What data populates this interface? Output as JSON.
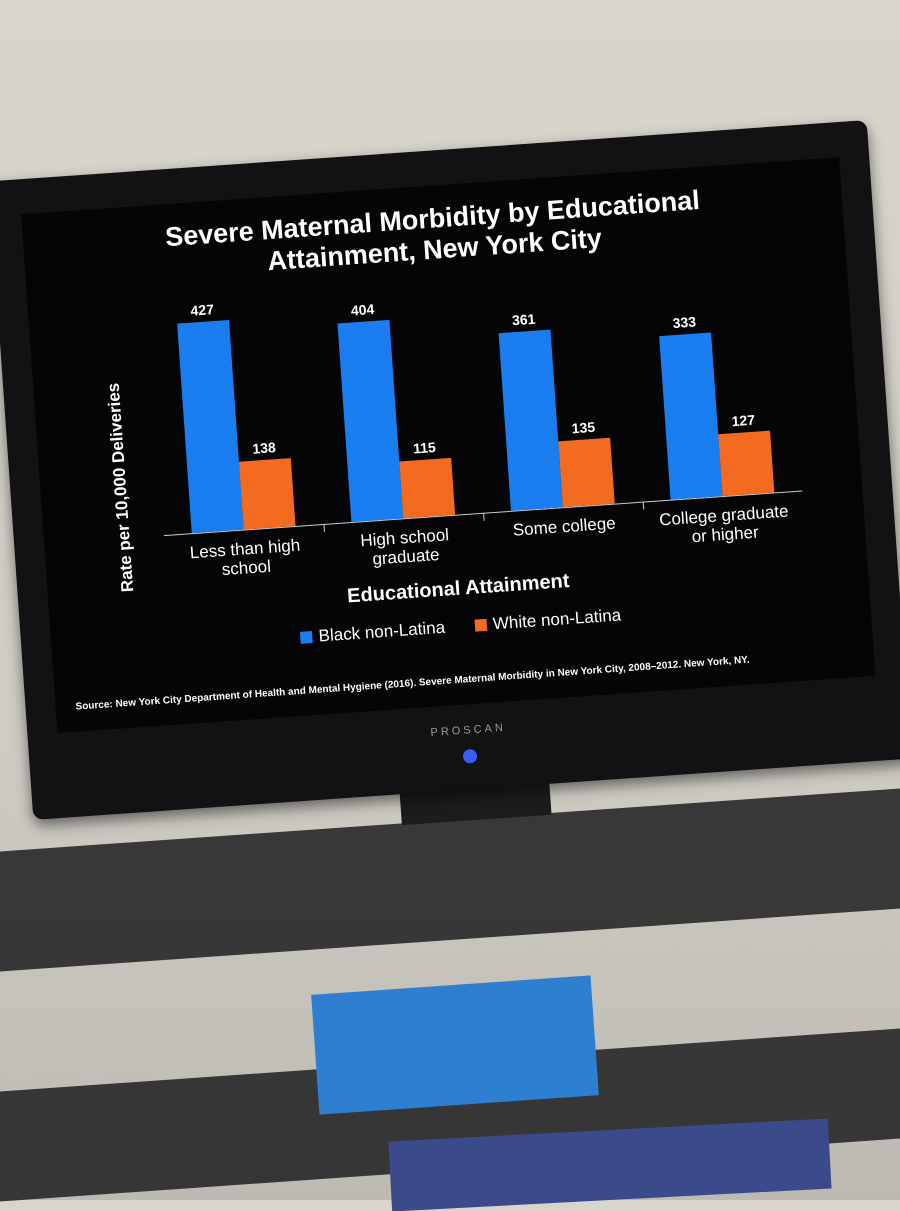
{
  "chart_data": {
    "type": "bar",
    "title": "Severe Maternal Morbidity by Educational Attainment, New York City",
    "x_label": "Educational Attainment",
    "y_label": "Rate per 10,000 Deliveries",
    "categories": [
      "Less than high school",
      "High school graduate",
      "Some college",
      "College graduate or higher"
    ],
    "series": [
      {
        "name": "Black non-Latina",
        "color": "#1a7ef0",
        "values": [
          427,
          404,
          361,
          333
        ]
      },
      {
        "name": "White non-Latina",
        "color": "#f26b21",
        "values": [
          138,
          115,
          135,
          127
        ]
      }
    ],
    "source": "Source: New York City Department of Health and Mental Hygiene (2016). Severe Maternal Morbidity in New York City, 2008–2012. New York, NY."
  },
  "device": {
    "brand": "PROSCAN"
  }
}
